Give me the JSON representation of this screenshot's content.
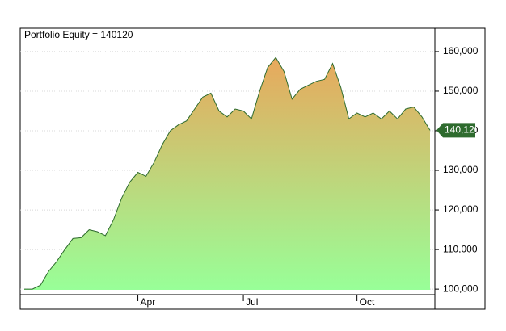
{
  "chart_data": {
    "type": "area",
    "title": "Portfolio Equity = 140120",
    "categories": [
      null,
      null,
      null,
      null,
      null,
      null,
      null,
      null,
      null,
      null,
      null,
      null,
      null,
      null,
      "Apr",
      null,
      null,
      null,
      null,
      null,
      null,
      null,
      null,
      null,
      null,
      null,
      null,
      "Jul",
      null,
      null,
      null,
      null,
      null,
      null,
      null,
      null,
      null,
      null,
      null,
      null,
      null,
      "Oct",
      null,
      null,
      null,
      null,
      null,
      null,
      null,
      null,
      null
    ],
    "series": [
      {
        "name": "Portfolio Equity",
        "color": "#2e6b2e",
        "values": [
          100000,
          100000,
          101000,
          104500,
          107000,
          110000,
          112800,
          113000,
          115000,
          114500,
          113500,
          117500,
          123000,
          127000,
          129500,
          128500,
          132000,
          136500,
          140000,
          141500,
          142500,
          145500,
          148500,
          149500,
          145000,
          143500,
          145500,
          145000,
          143000,
          150000,
          156000,
          158500,
          155000,
          148000,
          150500,
          151500,
          152500,
          153000,
          157000,
          151000,
          143000,
          144500,
          143500,
          144500,
          143000,
          145000,
          143000,
          145500,
          146000,
          143500,
          140120
        ]
      }
    ],
    "last_value_label": "140,120",
    "fill_top": "#e8a85c",
    "fill_bottom": "#98ff98",
    "ylim": [
      98600,
      165900
    ],
    "yticks": [
      {
        "value": 100000,
        "label": "100,000"
      },
      {
        "value": 110000,
        "label": "110,000"
      },
      {
        "value": 120000,
        "label": "120,000"
      },
      {
        "value": 130000,
        "label": "130,000"
      },
      {
        "value": 140000,
        "label": "140,000"
      },
      {
        "value": 150000,
        "label": "150,000"
      },
      {
        "value": 160000,
        "label": "160,000"
      }
    ],
    "grid": true
  }
}
